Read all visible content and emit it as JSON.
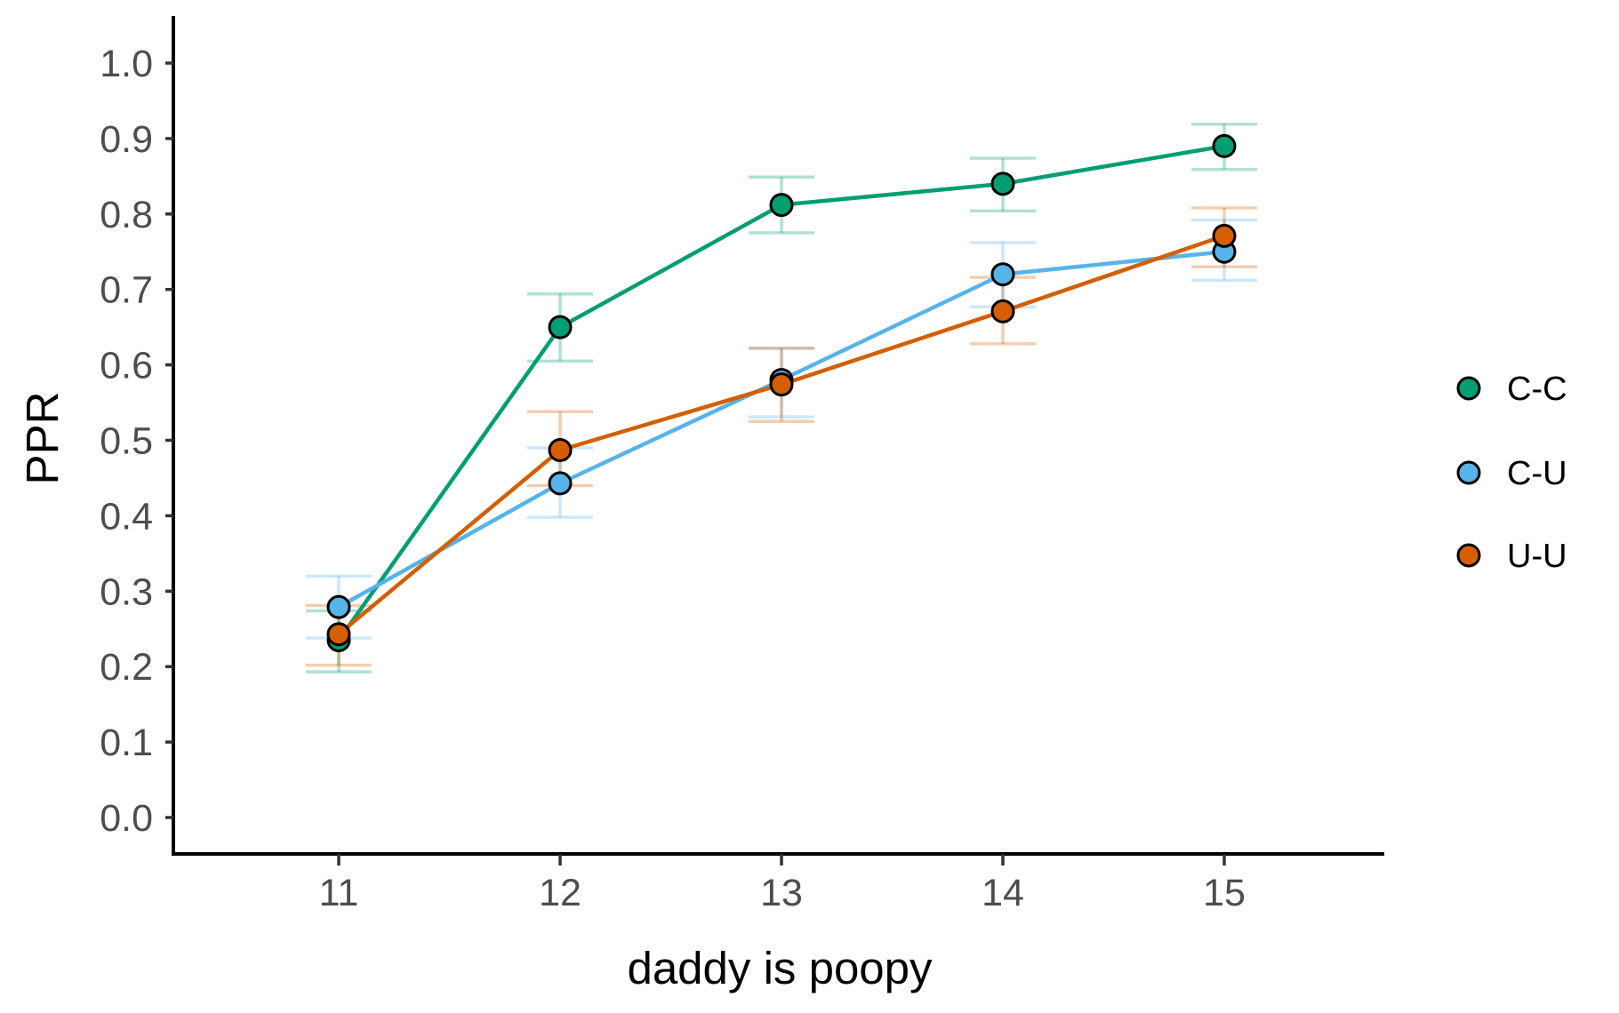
{
  "chart_data": {
    "type": "line",
    "xlabel": "daddy is poopy",
    "ylabel": "PPR",
    "x": [
      11,
      12,
      13,
      14,
      15
    ],
    "x_tick_labels": [
      "11",
      "12",
      "13",
      "14",
      "15"
    ],
    "y_tick_labels": [
      "0.0",
      "0.1",
      "0.2",
      "0.3",
      "0.4",
      "0.5",
      "0.6",
      "0.7",
      "0.8",
      "0.9",
      "1.0"
    ],
    "xlim": [
      10.25,
      15.72
    ],
    "ylim": [
      -0.05,
      1.06
    ],
    "grid": "off",
    "legend_position": "right",
    "error_bars": true,
    "axis_color": "#000000",
    "tick_label_color": "#4D4D4D",
    "series": [
      {
        "name": "C-C",
        "color": "#009E73",
        "values": [
          0.235,
          0.65,
          0.812,
          0.84,
          0.89
        ],
        "lower": [
          0.193,
          0.605,
          0.775,
          0.804,
          0.859
        ],
        "upper": [
          0.274,
          0.694,
          0.849,
          0.874,
          0.919
        ]
      },
      {
        "name": "C-U",
        "color": "#56B4E9",
        "values": [
          0.279,
          0.443,
          0.58,
          0.72,
          0.75
        ],
        "lower": [
          0.238,
          0.398,
          0.531,
          0.677,
          0.712
        ],
        "upper": [
          0.32,
          0.49,
          0.622,
          0.762,
          0.792
        ]
      },
      {
        "name": "U-U",
        "color": "#D55E00",
        "values": [
          0.243,
          0.487,
          0.574,
          0.671,
          0.771
        ],
        "lower": [
          0.202,
          0.44,
          0.525,
          0.628,
          0.73
        ],
        "upper": [
          0.281,
          0.538,
          0.622,
          0.716,
          0.808
        ]
      }
    ]
  }
}
